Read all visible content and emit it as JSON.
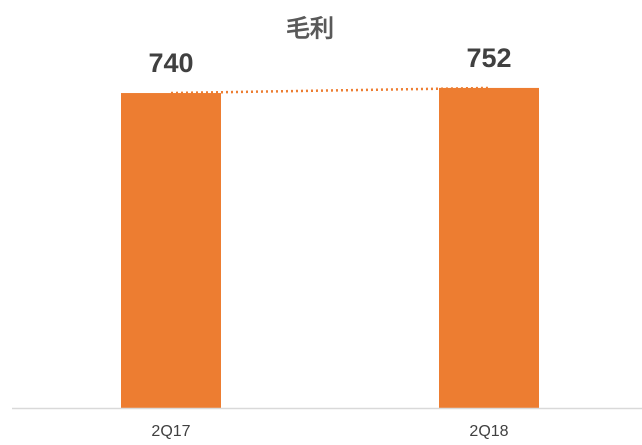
{
  "chart_data": {
    "type": "bar",
    "title": "毛利",
    "categories": [
      "2Q17",
      "2Q18"
    ],
    "values": [
      740,
      752
    ],
    "color": "#ed7d31",
    "ylim": [
      0,
      800
    ]
  }
}
